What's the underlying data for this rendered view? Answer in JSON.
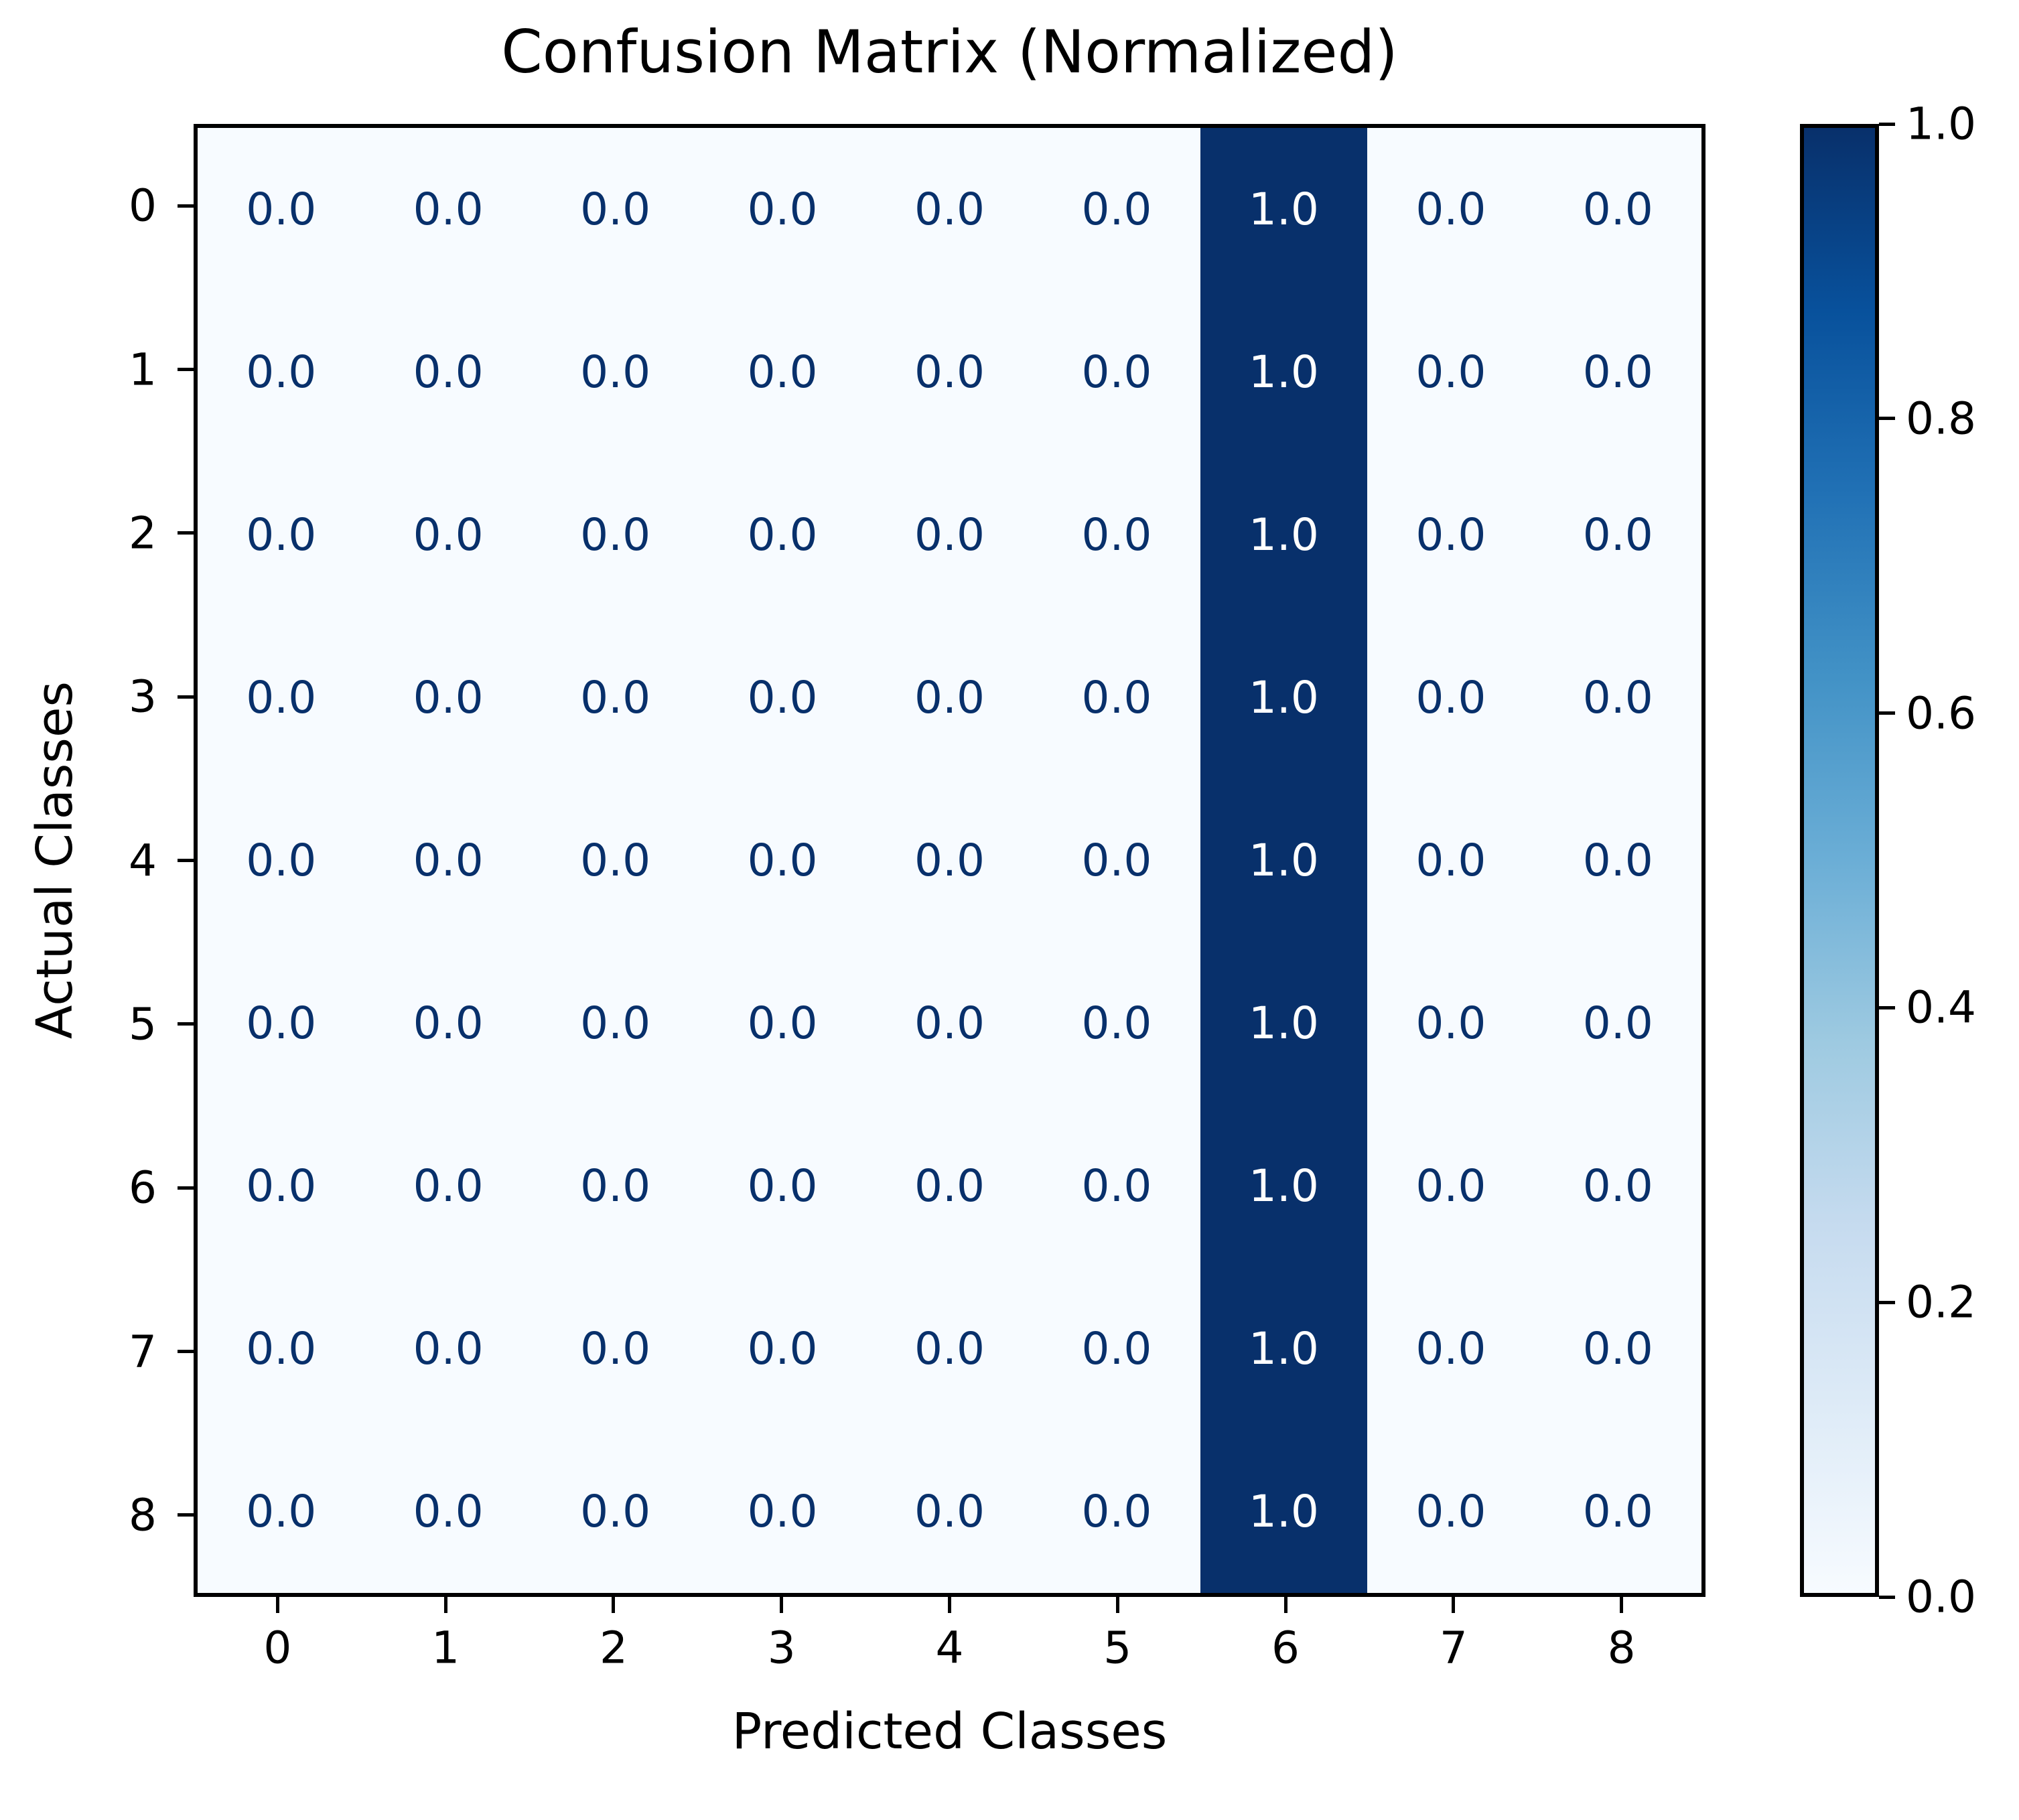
{
  "figure": {
    "background": "#ffffff"
  },
  "chart_data": {
    "type": "heatmap",
    "title": "Confusion Matrix (Normalized)",
    "xlabel": "Predicted Classes",
    "ylabel": "Actual Classes",
    "x_tick_labels": [
      "0",
      "1",
      "2",
      "3",
      "4",
      "5",
      "6",
      "7",
      "8"
    ],
    "y_tick_labels": [
      "0",
      "1",
      "2",
      "3",
      "4",
      "5",
      "6",
      "7",
      "8"
    ],
    "matrix": [
      [
        0.0,
        0.0,
        0.0,
        0.0,
        0.0,
        0.0,
        1.0,
        0.0,
        0.0
      ],
      [
        0.0,
        0.0,
        0.0,
        0.0,
        0.0,
        0.0,
        1.0,
        0.0,
        0.0
      ],
      [
        0.0,
        0.0,
        0.0,
        0.0,
        0.0,
        0.0,
        1.0,
        0.0,
        0.0
      ],
      [
        0.0,
        0.0,
        0.0,
        0.0,
        0.0,
        0.0,
        1.0,
        0.0,
        0.0
      ],
      [
        0.0,
        0.0,
        0.0,
        0.0,
        0.0,
        0.0,
        1.0,
        0.0,
        0.0
      ],
      [
        0.0,
        0.0,
        0.0,
        0.0,
        0.0,
        0.0,
        1.0,
        0.0,
        0.0
      ],
      [
        0.0,
        0.0,
        0.0,
        0.0,
        0.0,
        0.0,
        1.0,
        0.0,
        0.0
      ],
      [
        0.0,
        0.0,
        0.0,
        0.0,
        0.0,
        0.0,
        1.0,
        0.0,
        0.0
      ],
      [
        0.0,
        0.0,
        0.0,
        0.0,
        0.0,
        0.0,
        1.0,
        0.0,
        0.0
      ]
    ],
    "value_decimals": 1,
    "colormap": {
      "name": "Blues",
      "min_color": "#f7fbff",
      "max_color": "#08306b",
      "gradient_stops": [
        "#f7fbff",
        "#deebf7",
        "#c6dbef",
        "#9ecae1",
        "#6baed6",
        "#4292c6",
        "#2171b5",
        "#08519c",
        "#08306b"
      ],
      "value_text_dark": "#08306b",
      "value_text_light": "#ffffff"
    },
    "colorbar": {
      "min": 0.0,
      "max": 1.0,
      "tick_values": [
        0.0,
        0.2,
        0.4,
        0.6,
        0.8,
        1.0
      ]
    }
  }
}
